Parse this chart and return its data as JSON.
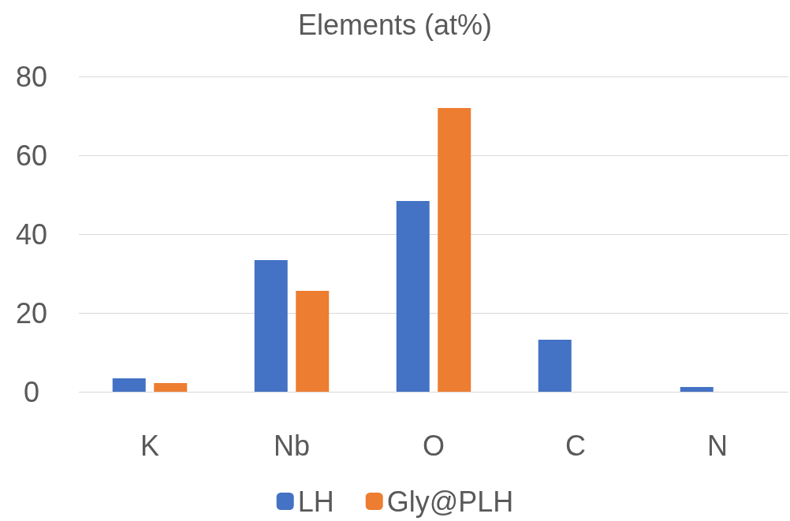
{
  "chart_data": {
    "type": "bar",
    "title": "Elements (at%)",
    "categories": [
      "K",
      "Nb",
      "O",
      "C",
      "N"
    ],
    "series": [
      {
        "name": "LH",
        "color": "#4472c4",
        "values": [
          3.4,
          33.4,
          48.4,
          13.2,
          1.2
        ]
      },
      {
        "name": "Gly@PLH",
        "color": "#ed7d31",
        "values": [
          2.2,
          25.6,
          72,
          null,
          null
        ]
      }
    ],
    "ylim": [
      0,
      80
    ],
    "yticks": [
      0,
      20,
      40,
      60,
      80
    ],
    "grid": "y",
    "legend": "bottom"
  }
}
